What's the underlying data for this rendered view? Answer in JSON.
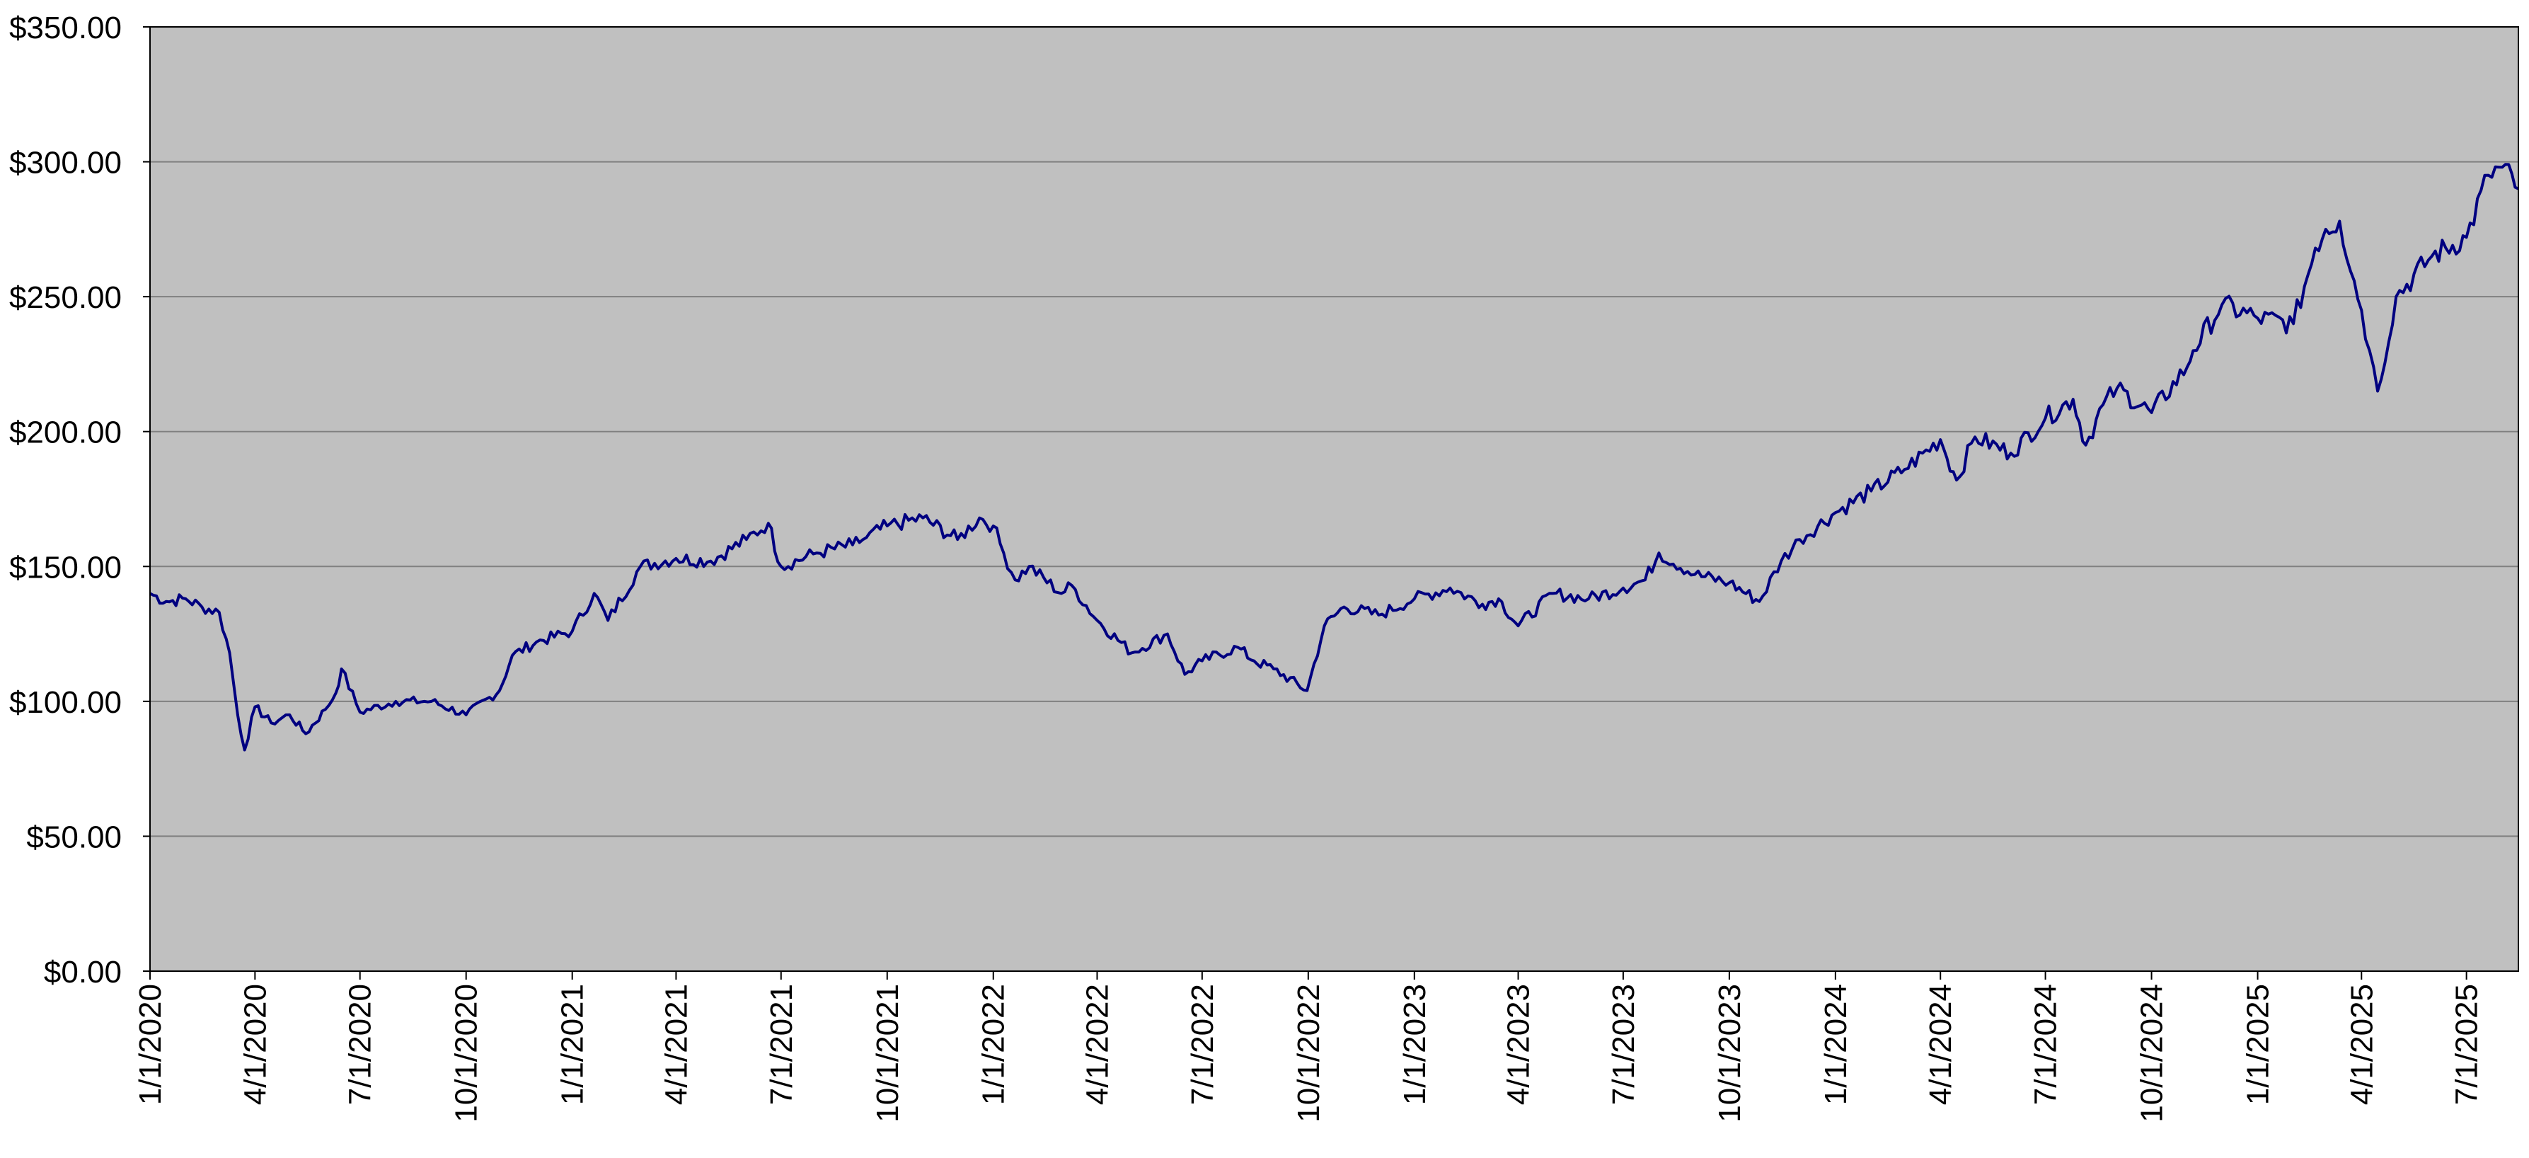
{
  "chart_data": {
    "type": "line",
    "title": "",
    "xlabel": "",
    "ylabel": "",
    "ylim": [
      0,
      350
    ],
    "y_ticks": [
      0,
      50,
      100,
      150,
      200,
      250,
      300,
      350
    ],
    "y_tick_labels": [
      "$0.00",
      "$50.00",
      "$100.00",
      "$150.00",
      "$200.00",
      "$250.00",
      "$300.00",
      "$350.00"
    ],
    "xlim": [
      "2020-01-01",
      "2025-08-15"
    ],
    "x_ticks": [
      "2020-01-01",
      "2020-04-01",
      "2020-07-01",
      "2020-10-01",
      "2021-01-01",
      "2021-04-01",
      "2021-07-01",
      "2021-10-01",
      "2022-01-01",
      "2022-04-01",
      "2022-07-01",
      "2022-10-01",
      "2023-01-01",
      "2023-04-01",
      "2023-07-01",
      "2023-10-01",
      "2024-01-01",
      "2024-04-01",
      "2024-07-01",
      "2024-10-01",
      "2025-01-01",
      "2025-04-01",
      "2025-07-01"
    ],
    "x_tick_labels": [
      "1/1/2020",
      "4/1/2020",
      "7/1/2020",
      "10/1/2020",
      "1/1/2021",
      "4/1/2021",
      "7/1/2021",
      "10/1/2021",
      "1/1/2022",
      "4/1/2022",
      "7/1/2022",
      "10/1/2022",
      "1/1/2023",
      "4/1/2023",
      "7/1/2023",
      "10/1/2023",
      "1/1/2024",
      "4/1/2024",
      "7/1/2024",
      "10/1/2024",
      "1/1/2025",
      "4/1/2025",
      "7/1/2025"
    ],
    "grid": true,
    "legend": "none",
    "colors": {
      "plot_background": "#c0c0c0",
      "line": "#000080",
      "gridline": "#808080",
      "axis": "#000000"
    },
    "series": [
      {
        "x": [
          "2020-01-01",
          "2020-01-15",
          "2020-02-01",
          "2020-02-15",
          "2020-03-01",
          "2020-03-10",
          "2020-03-17",
          "2020-03-23",
          "2020-04-01",
          "2020-04-15",
          "2020-05-01",
          "2020-05-15",
          "2020-06-01",
          "2020-06-10",
          "2020-06-15",
          "2020-07-01",
          "2020-08-01",
          "2020-09-01",
          "2020-10-01",
          "2020-10-30",
          "2020-11-10",
          "2020-12-01",
          "2021-01-01",
          "2021-01-20",
          "2021-02-01",
          "2021-03-01",
          "2021-04-01",
          "2021-05-01",
          "2021-06-01",
          "2021-06-20",
          "2021-07-01",
          "2021-08-01",
          "2021-09-01",
          "2021-09-10",
          "2021-10-01",
          "2021-11-01",
          "2021-12-01",
          "2021-12-20",
          "2022-01-01",
          "2022-01-10",
          "2022-01-20",
          "2022-02-01",
          "2022-03-01",
          "2022-03-10",
          "2022-04-01",
          "2022-05-01",
          "2022-06-01",
          "2022-06-16",
          "2022-07-01",
          "2022-08-01",
          "2022-08-15",
          "2022-09-01",
          "2022-09-30",
          "2022-10-15",
          "2022-11-01",
          "2022-12-01",
          "2023-01-01",
          "2023-02-01",
          "2023-03-01",
          "2023-03-15",
          "2023-04-01",
          "2023-05-01",
          "2023-06-01",
          "2023-07-01",
          "2023-07-20",
          "2023-08-01",
          "2023-09-01",
          "2023-10-01",
          "2023-10-27",
          "2023-11-15",
          "2023-12-01",
          "2024-01-01",
          "2024-02-01",
          "2024-03-01",
          "2024-04-01",
          "2024-04-15",
          "2024-05-01",
          "2024-06-01",
          "2024-07-01",
          "2024-07-25",
          "2024-08-05",
          "2024-08-20",
          "2024-09-01",
          "2024-10-01",
          "2024-11-01",
          "2024-11-06",
          "2024-12-01",
          "2025-01-01",
          "2025-02-01",
          "2025-02-20",
          "2025-03-01",
          "2025-03-13",
          "2025-04-01",
          "2025-04-08",
          "2025-04-15",
          "2025-05-01",
          "2025-06-01",
          "2025-07-01",
          "2025-07-20",
          "2025-08-01",
          "2025-08-15"
        ],
        "values": [
          140,
          137,
          138,
          135,
          133,
          118,
          95,
          82,
          98,
          92,
          95,
          88,
          97,
          103,
          112,
          96,
          100,
          100,
          95,
          104,
          117,
          122,
          126,
          140,
          130,
          150,
          153,
          152,
          160,
          166,
          150,
          155,
          158,
          160,
          165,
          168,
          160,
          168,
          165,
          155,
          145,
          150,
          140,
          143,
          130,
          118,
          125,
          110,
          115,
          120,
          115,
          112,
          104,
          128,
          135,
          132,
          138,
          142,
          136,
          138,
          128,
          140,
          138,
          142,
          145,
          155,
          147,
          144,
          137,
          152,
          160,
          170,
          178,
          186,
          197,
          182,
          198,
          192,
          205,
          212,
          195,
          210,
          216,
          207,
          224,
          230,
          247,
          242,
          240,
          268,
          275,
          278,
          245,
          230,
          215,
          250,
          265,
          272,
          295,
          298,
          290
        ]
      }
    ]
  }
}
